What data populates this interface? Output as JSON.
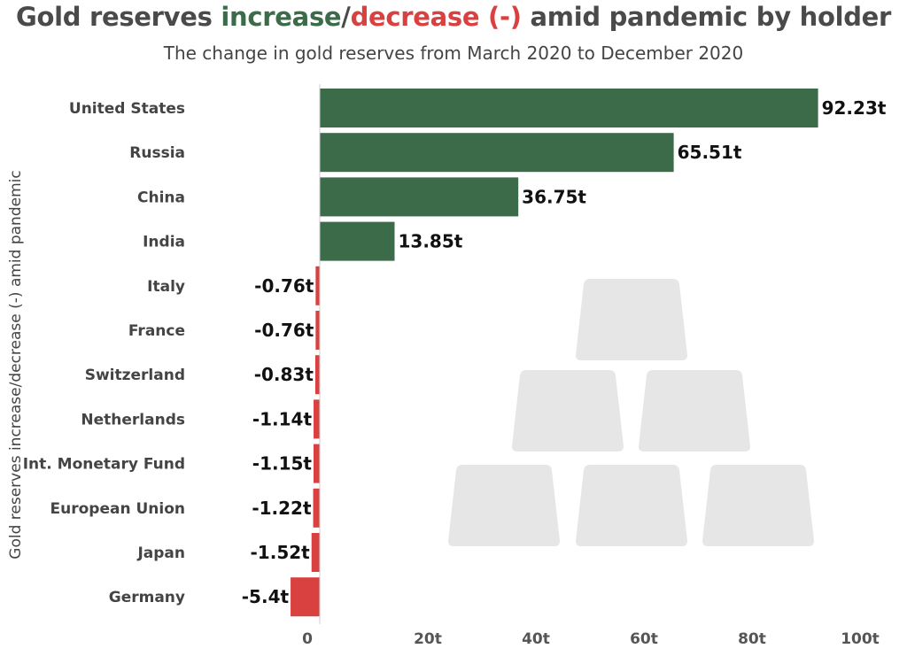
{
  "title": {
    "part1": "Gold reserves ",
    "increase": "increase",
    "slash": "/",
    "decrease": "decrease (-)",
    "part2": " amid pandemic by holder"
  },
  "subtitle": "The change in gold reserves from March 2020 to December 2020",
  "colors": {
    "increase": "#3c6b49",
    "decrease": "#d94040",
    "gold_bars": "#e6e6e6"
  },
  "decoration": {
    "icon": "gold-bars-icon"
  },
  "chart_data": {
    "type": "bar",
    "orientation": "horizontal",
    "ylabel": "Gold reserves increase/decrease (-) amid pandemic",
    "xlabel": "",
    "xlim": [
      -5.4,
      100
    ],
    "x_ticks": [
      0,
      20,
      40,
      60,
      80,
      100
    ],
    "x_tick_labels": [
      "0",
      "20t",
      "40t",
      "60t",
      "80t",
      "100t"
    ],
    "grid": false,
    "categories": [
      "United States",
      "Russia",
      "China",
      "India",
      "Italy",
      "France",
      "Switzerland",
      "Netherlands",
      "Int. Monetary Fund",
      "European Union",
      "Japan",
      "Germany"
    ],
    "values": [
      92.23,
      65.51,
      36.75,
      13.85,
      -0.76,
      -0.76,
      -0.83,
      -1.14,
      -1.15,
      -1.22,
      -1.52,
      -5.4
    ],
    "value_labels": [
      "92.23t",
      "65.51t",
      "36.75t",
      "13.85t",
      "-0.76t",
      "-0.76t",
      "-0.83t",
      "-1.14t",
      "-1.15t",
      "-1.22t",
      "-1.52t",
      "-5.4t"
    ]
  }
}
